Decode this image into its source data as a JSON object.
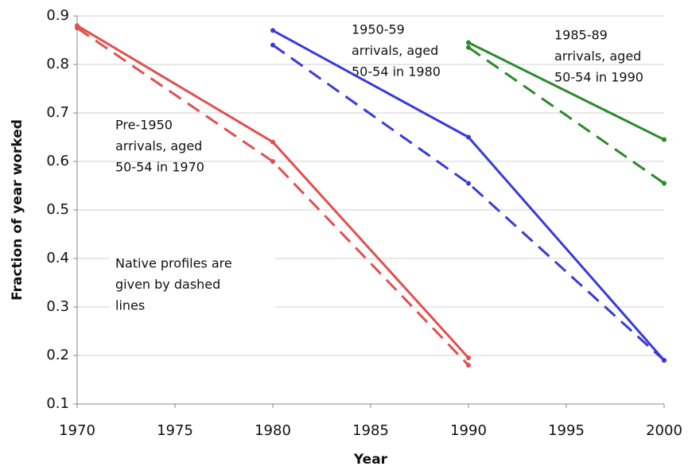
{
  "chart_data": {
    "type": "line",
    "x_label": "Year",
    "y_label": "Fraction of year worked",
    "x": [
      1970,
      1980,
      1990,
      2000
    ],
    "series": [
      {
        "color": "#e05050",
        "dash": false,
        "values": [
          0.88,
          0.64,
          0.195,
          null
        ]
      },
      {
        "color": "#e05050",
        "dash": true,
        "values": [
          0.875,
          0.6,
          0.18,
          null
        ]
      },
      {
        "color": "#3a3ad8",
        "dash": false,
        "values": [
          null,
          0.87,
          0.65,
          0.19
        ]
      },
      {
        "color": "#3a3ad8",
        "dash": true,
        "values": [
          null,
          0.84,
          0.555,
          0.19
        ]
      },
      {
        "color": "#2a8a2a",
        "dash": false,
        "values": [
          null,
          null,
          0.845,
          0.645
        ]
      },
      {
        "color": "#2a8a2a",
        "dash": true,
        "values": [
          null,
          null,
          0.835,
          0.555
        ]
      }
    ],
    "annotations": [
      [
        "Pre-1950",
        "arrivals, aged",
        "50-54 in 1970"
      ],
      [
        "1950-59",
        "arrivals, aged",
        "50-54 in 1980"
      ],
      [
        "1985-89",
        "arrivals, aged",
        "50-54 in 1990"
      ],
      [
        "Native profiles are",
        "given by dashed",
        "lines"
      ]
    ],
    "xlim": [
      1970,
      2000
    ],
    "xticks": [
      1970,
      1975,
      1980,
      1985,
      1990,
      1995,
      2000
    ],
    "ylim": [
      0.1,
      0.9
    ],
    "yticks": [
      0.1,
      0.2,
      0.3,
      0.4,
      0.5,
      0.6,
      0.7,
      0.8,
      0.9
    ],
    "grid": true
  }
}
